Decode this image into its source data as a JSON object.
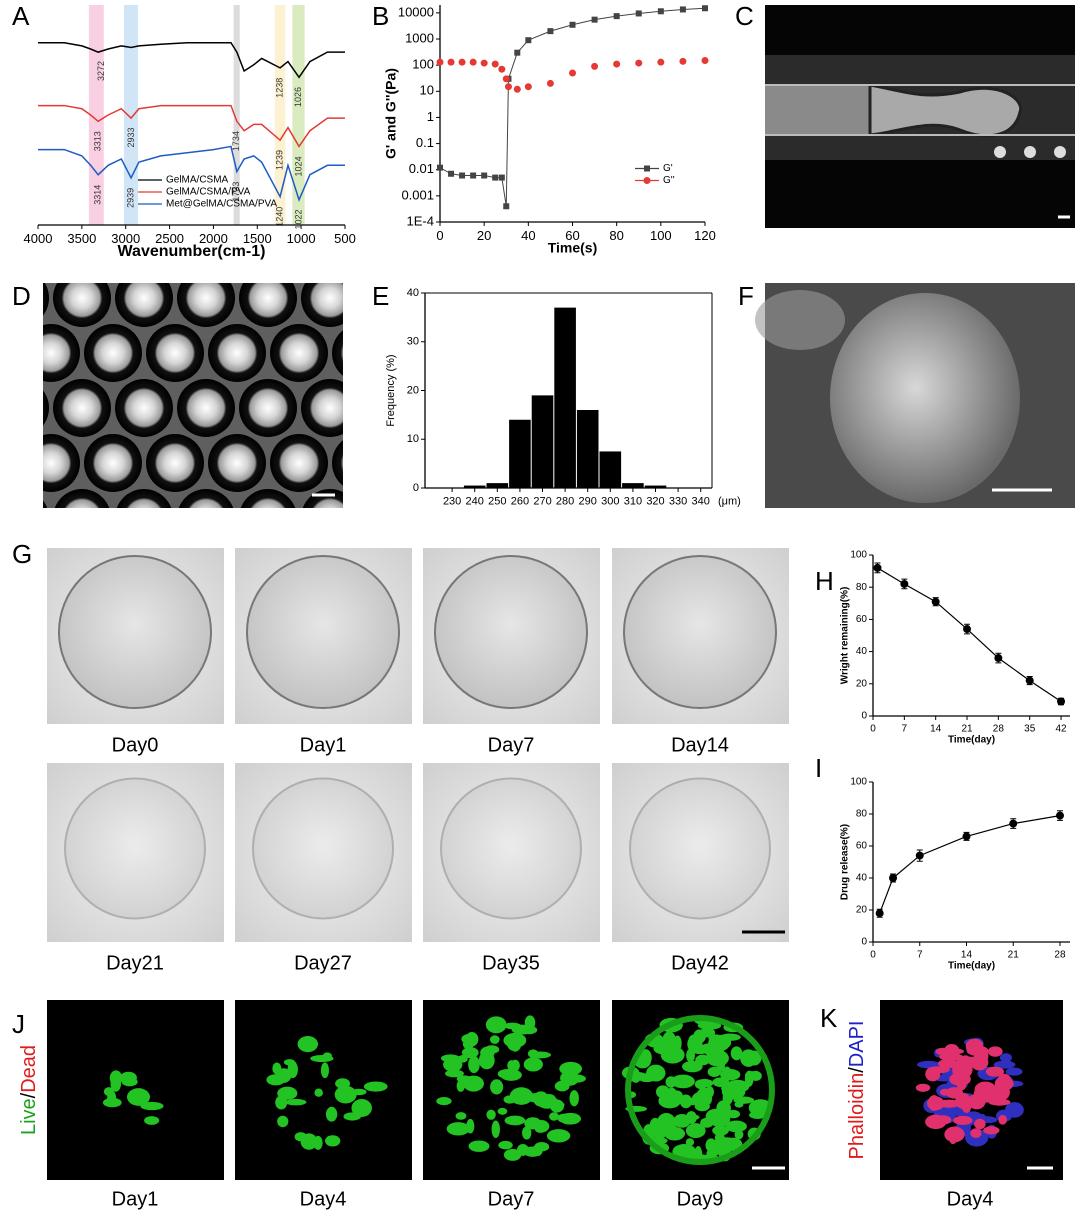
{
  "panel_labels": [
    "A",
    "B",
    "C",
    "D",
    "E",
    "F",
    "G",
    "H",
    "I",
    "J",
    "K"
  ],
  "chart_data": [
    {
      "type": "line",
      "xlabel": "Wavenumber(cm-1)",
      "x": [
        4000,
        3700,
        3500,
        3400,
        3314,
        3200,
        3050,
        2939,
        2850,
        2600,
        2300,
        2000,
        1800,
        1733,
        1650,
        1540,
        1450,
        1240,
        1150,
        1024,
        900,
        700,
        500
      ],
      "xlim": [
        4000,
        500
      ],
      "xticks": [
        4000,
        3500,
        3000,
        2500,
        2000,
        1500,
        1000,
        500
      ],
      "ylim": [
        25,
        95
      ],
      "bands": [
        {
          "from": 3420,
          "to": 3250,
          "color": "#f8c8dc"
        },
        {
          "from": 3020,
          "to": 2860,
          "color": "#c8e2f6"
        },
        {
          "from": 1770,
          "to": 1700,
          "color": "#d6d6d6"
        },
        {
          "from": 1300,
          "to": 1180,
          "color": "#fbefc8"
        },
        {
          "from": 1100,
          "to": 960,
          "color": "#d4e8b4"
        }
      ],
      "legend": "lower-center",
      "series": [
        {
          "name": "GelMA/CSMA",
          "color": "#000000",
          "values": [
            83,
            83,
            82,
            81,
            80,
            81,
            82,
            81.5,
            82,
            82.5,
            83,
            83,
            83,
            80,
            74,
            76,
            78,
            75,
            77,
            72,
            77,
            80,
            80
          ],
          "peaks": [
            3272,
            1238,
            1026
          ]
        },
        {
          "name": "GelMA/CSMA/PVA",
          "color": "#e53935",
          "values": [
            63,
            63,
            62,
            60,
            58,
            60,
            62,
            59,
            62,
            63,
            63,
            63,
            63,
            58,
            55,
            57,
            57,
            52,
            56,
            50,
            55,
            59,
            59
          ],
          "peaks": [
            3313,
            2933,
            1734,
            1239,
            1024
          ]
        },
        {
          "name": "Met@GelMA/CSMA/PVA",
          "color": "#1e5bc6",
          "values": [
            49,
            49,
            47,
            44,
            41,
            44,
            46,
            40,
            45,
            47,
            48,
            49,
            50,
            42,
            46,
            47,
            45,
            34,
            44,
            33,
            41,
            44,
            44
          ],
          "peaks": [
            3314,
            2939,
            1733,
            1240,
            1022
          ]
        }
      ]
    },
    {
      "type": "scatter",
      "xlabel": "Time(s)",
      "ylabel": "G' and G''(Pa)",
      "yscale": "log",
      "x": [
        0,
        5,
        10,
        15,
        20,
        25,
        28,
        30,
        31,
        35,
        40,
        50,
        60,
        70,
        80,
        90,
        100,
        110,
        120
      ],
      "xlim": [
        0,
        120
      ],
      "xticks": [
        0,
        20,
        40,
        60,
        80,
        100,
        120
      ],
      "ylim": [
        0.0001,
        20000
      ],
      "yticks": [
        {
          "value": 0.0001,
          "label": "1E-4"
        },
        0.001,
        0.01,
        0.1,
        1,
        10,
        100,
        1000,
        10000
      ],
      "legend": "center-right",
      "series": [
        {
          "name": "G'",
          "color": "#444444",
          "marker": "square",
          "line": true,
          "values": [
            0.012,
            0.007,
            0.006,
            0.006,
            0.006,
            0.005,
            0.005,
            0.0004,
            30,
            300,
            900,
            2000,
            3500,
            5500,
            7500,
            9500,
            11500,
            13500,
            15000
          ]
        },
        {
          "name": "G''",
          "color": "#e53935",
          "marker": "circle",
          "values": [
            130,
            130,
            130,
            130,
            120,
            110,
            70,
            30,
            15,
            12,
            15,
            20,
            50,
            90,
            110,
            120,
            130,
            140,
            150
          ]
        }
      ]
    },
    {
      "type": "histogram",
      "xlabel": "(μm)",
      "ylabel": "Frequency (%)",
      "frame": true,
      "color": "#000000",
      "bins": [
        225,
        235,
        245,
        255,
        265,
        275,
        285,
        295,
        305,
        315,
        325,
        335,
        345
      ],
      "values": [
        0,
        0.5,
        1,
        14,
        19,
        37,
        16,
        7.5,
        1,
        0.5,
        0,
        0
      ],
      "xlim": [
        218,
        345
      ],
      "xticks": [
        230,
        240,
        250,
        260,
        270,
        280,
        290,
        300,
        310,
        320,
        330,
        340
      ],
      "ylim": [
        0,
        40
      ],
      "yticks": [
        0,
        10,
        20,
        30,
        40
      ]
    },
    {
      "type": "line",
      "xlabel": "Time(day)",
      "ylabel": "Wright remaining(%)",
      "color": "#000000",
      "x": [
        1,
        7,
        14,
        21,
        28,
        35,
        42
      ],
      "values": [
        92,
        82,
        71,
        54,
        36,
        22,
        9
      ],
      "errors": [
        3,
        3,
        2.5,
        3,
        3,
        2.5,
        2
      ],
      "xlim": [
        0,
        44
      ],
      "xticks": [
        0,
        7,
        14,
        21,
        28,
        35,
        42
      ],
      "ylim": [
        0,
        100
      ],
      "yticks": [
        0,
        20,
        40,
        60,
        80,
        100
      ]
    },
    {
      "type": "line",
      "xlabel": "Time(day)",
      "ylabel": "Drug release(%)",
      "color": "#000000",
      "x": [
        1,
        3,
        7,
        14,
        21,
        28
      ],
      "values": [
        18,
        40,
        54,
        66,
        74,
        79
      ],
      "errors": [
        2.5,
        2.5,
        3.5,
        2.5,
        3,
        3
      ],
      "xlim": [
        0,
        29.5
      ],
      "xticks": [
        0,
        7,
        14,
        21,
        28
      ],
      "ylim": [
        0,
        100
      ],
      "yticks": [
        0,
        20,
        40,
        60,
        80,
        100
      ]
    }
  ],
  "degradation_images": {
    "captions": [
      "Day0",
      "Day1",
      "Day7",
      "Day14",
      "Day21",
      "Day27",
      "Day35",
      "Day42"
    ]
  },
  "live_dead_images": {
    "stain": [
      "Live",
      "/",
      "Dead"
    ],
    "captions": [
      "Day1",
      "Day4",
      "Day7",
      "Day9"
    ]
  },
  "cytoskeleton_image": {
    "stain": [
      "Phalloidin",
      "/",
      "DAPI"
    ],
    "caption": "Day4"
  }
}
